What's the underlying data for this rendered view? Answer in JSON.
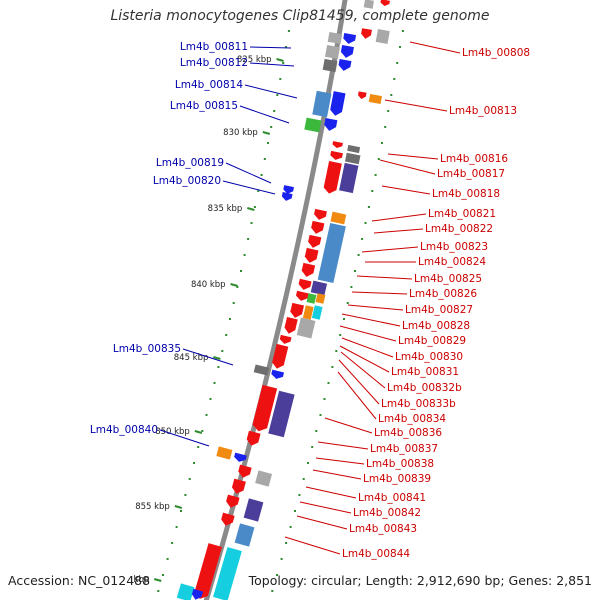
{
  "title": "Listeria monocytogenes Clip81459, complete genome",
  "accession": "Accession: NC_012488",
  "topology": "Topology: circular; Length: 2,912,690 bp; Genes: 2,851",
  "colors": {
    "backbone": "#8a8a8a",
    "tick": "#2e8b2e",
    "left_label": "#0000aa",
    "right_label": "#cc0000",
    "red": "#ee1111",
    "blue": "#1a22ee",
    "steelblue": "#4a8ac8",
    "navy": "#4b3d9a",
    "orange": "#f08a10",
    "green": "#3cb83c",
    "gray": "#a8a8a8",
    "darkgray": "#6e6e6e",
    "cyan": "#15cfe0"
  },
  "kbp_labels": [
    "825 kbp",
    "830 kbp",
    "835 kbp",
    "840 kbp",
    "845 kbp",
    "850 kbp",
    "855 kbp",
    "kbp"
  ],
  "left_genes": [
    "Lm4b_00811",
    "Lm4b_00812",
    "Lm4b_00814",
    "Lm4b_00815",
    "Lm4b_00819",
    "Lm4b_00820",
    "Lm4b_00835",
    "Lm4b_00840"
  ],
  "right_genes": [
    "Lm4b_00808",
    "Lm4b_00813",
    "Lm4b_00816",
    "Lm4b_00817",
    "Lm4b_00818",
    "Lm4b_00821",
    "Lm4b_00822",
    "Lm4b_00823",
    "Lm4b_00824",
    "Lm4b_00825",
    "Lm4b_00826",
    "Lm4b_00827",
    "Lm4b_00828",
    "Lm4b_00829",
    "Lm4b_00830",
    "Lm4b_00831",
    "Lm4b_00832b",
    "Lm4b_00833b",
    "Lm4b_00834",
    "Lm4b_00836",
    "Lm4b_00837",
    "Lm4b_00838",
    "Lm4b_00839",
    "Lm4b_00841",
    "Lm4b_00842",
    "Lm4b_00843",
    "Lm4b_00844"
  ]
}
